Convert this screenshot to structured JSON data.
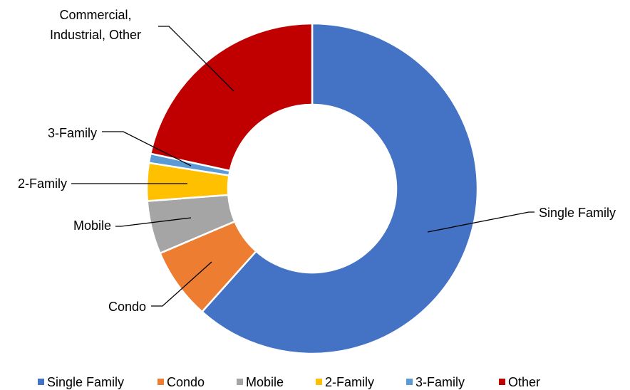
{
  "chart_data": {
    "type": "donut",
    "categories": [
      "Single Family",
      "Condo",
      "Mobile",
      "2-Family",
      "3-Family",
      "Other"
    ],
    "values": [
      61.6,
      7.0,
      5.2,
      3.7,
      0.9,
      21.6
    ],
    "colors": [
      "#4472c4",
      "#ed7d31",
      "#a5a5a5",
      "#ffc000",
      "#5b9bd5",
      "#c00000"
    ],
    "callout_labels": [
      [
        "Single Family"
      ],
      [
        "Condo"
      ],
      [
        "Mobile"
      ],
      [
        "2-Family"
      ],
      [
        "3-Family"
      ],
      [
        "Commercial,",
        "Industrial, Other"
      ]
    ],
    "legend": "bottom"
  }
}
